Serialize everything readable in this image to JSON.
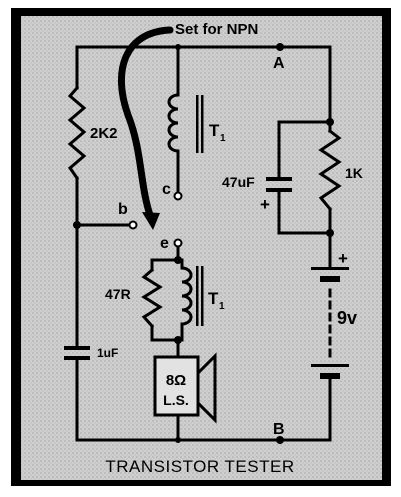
{
  "title": "TRANSISTOR TESTER",
  "note": "Set for NPN",
  "components": {
    "r1": "2K2",
    "r2": "1K",
    "r3": "47R",
    "c1": "47uF",
    "c2": "1uF",
    "transformer": "T",
    "transformer_sub": "1",
    "battery": "9v",
    "speaker_line1": "8Ω",
    "speaker_line2": "L.S."
  },
  "terminals": {
    "b": "b",
    "c": "c",
    "e": "e",
    "a": "A",
    "bb": "B"
  },
  "polarity": {
    "c1_plus": "+",
    "batt_plus": "+"
  },
  "colors": {
    "panel": "#c9c9c9",
    "ink": "#000000",
    "paper": "#ffffff"
  }
}
